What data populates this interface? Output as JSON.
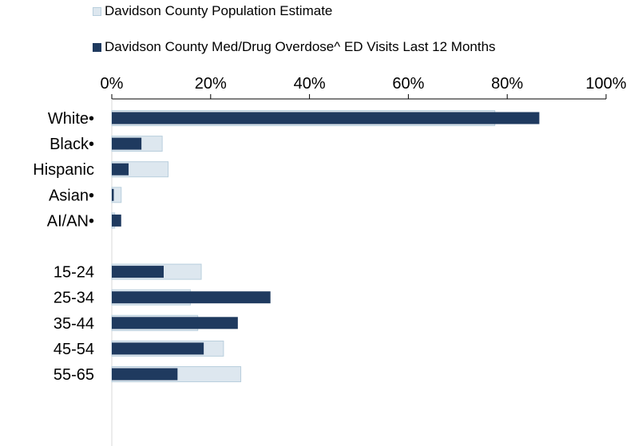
{
  "chart_data": {
    "type": "bar",
    "orientation": "horizontal",
    "categories": [
      "White•",
      "Black•",
      "Hispanic",
      "Asian•",
      "AI/AN•",
      "",
      "15-24",
      "25-34",
      "35-44",
      "45-54",
      "55-65"
    ],
    "series": [
      {
        "name": "Davidson County Population Estimate",
        "color": "#dde7ef",
        "border": "#b9cfdd",
        "values": [
          77.5,
          10.2,
          11.4,
          1.9,
          0.6,
          null,
          18.1,
          15.9,
          17.4,
          22.6,
          26.1
        ]
      },
      {
        "name": "Davidson County Med/Drug Overdose^ ED Visits Last 12 Months",
        "color": "#1f3a5f",
        "values": [
          86.5,
          6.0,
          3.4,
          0.4,
          1.9,
          null,
          10.5,
          32.1,
          25.5,
          18.6,
          13.3
        ]
      }
    ],
    "xlim": [
      0,
      100
    ],
    "ticks": [
      "0%",
      "20%",
      "40%",
      "60%",
      "80%",
      "100%"
    ],
    "tick_values": [
      0,
      20,
      40,
      60,
      80,
      100
    ],
    "axis_position": "top",
    "legend_position": "top",
    "grid": false
  }
}
